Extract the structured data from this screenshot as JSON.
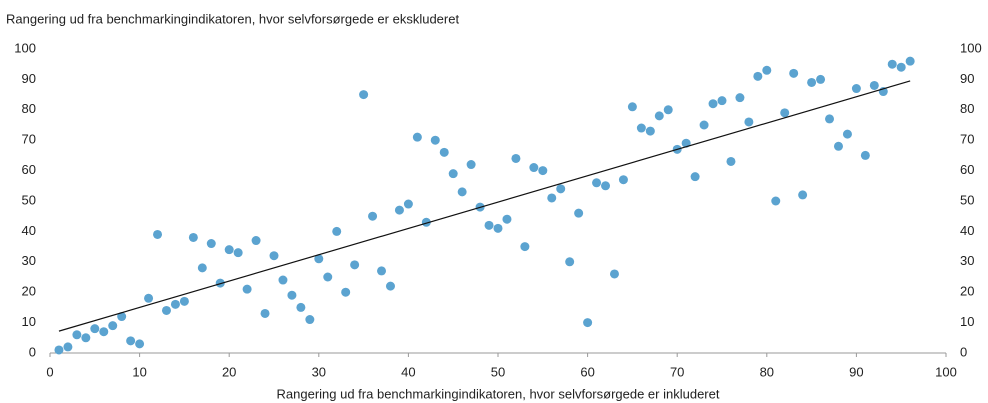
{
  "chart_data": {
    "type": "scatter",
    "title": "Rangering ud fra benchmarkingindikatoren, hvor selvforsørgede er ekskluderet",
    "x_label": "Rangering ud fra benchmarkingindikatoren, hvor selvforsørgede er inkluderet",
    "color": "#5ba3d0",
    "x": [
      1,
      2,
      3,
      4,
      5,
      6,
      7,
      8,
      9,
      10,
      11,
      12,
      13,
      14,
      15,
      16,
      17,
      18,
      19,
      20,
      21,
      22,
      23,
      24,
      25,
      26,
      27,
      28,
      29,
      30,
      31,
      32,
      33,
      34,
      35,
      36,
      37,
      38,
      39,
      40,
      41,
      42,
      43,
      44,
      45,
      46,
      47,
      48,
      49,
      50,
      51,
      52,
      53,
      54,
      55,
      56,
      57,
      58,
      59,
      60,
      61,
      62,
      63,
      64,
      65,
      66,
      67,
      68,
      69,
      70,
      71,
      72,
      73,
      74,
      75,
      76,
      77,
      78,
      79,
      80,
      81,
      82,
      83,
      84,
      85,
      86,
      87,
      88,
      89,
      90,
      91,
      92,
      93,
      94,
      95,
      96
    ],
    "y": [
      1,
      2,
      6,
      5,
      8,
      7,
      9,
      12,
      4,
      3,
      18,
      39,
      14,
      16,
      17,
      38,
      28,
      36,
      23,
      34,
      33,
      21,
      37,
      13,
      32,
      24,
      19,
      15,
      11,
      31,
      25,
      40,
      20,
      29,
      85,
      45,
      27,
      22,
      47,
      49,
      71,
      43,
      70,
      66,
      59,
      53,
      62,
      48,
      42,
      41,
      44,
      64,
      35,
      61,
      60,
      51,
      54,
      30,
      46,
      10,
      56,
      55,
      26,
      57,
      81,
      74,
      73,
      78,
      80,
      67,
      69,
      58,
      75,
      82,
      83,
      63,
      84,
      76,
      91,
      93,
      50,
      79,
      92,
      52,
      89,
      90,
      77,
      68,
      72,
      87,
      65,
      88,
      86,
      95,
      94,
      96
    ],
    "trendline": {
      "x": [
        1,
        96
      ],
      "y": [
        7.2,
        89.5
      ],
      "color": "#111111"
    },
    "xlim": [
      0,
      100
    ],
    "xticks": [
      0,
      10,
      20,
      30,
      40,
      50,
      60,
      70,
      80,
      90,
      100
    ],
    "ylim": [
      0,
      100
    ],
    "yticks": [
      0,
      10,
      20,
      30,
      40,
      50,
      60,
      70,
      80,
      90,
      100
    ],
    "y2lim": [
      0,
      100
    ],
    "y2ticks": [
      0,
      10,
      20,
      30,
      40,
      50,
      60,
      70,
      80,
      90,
      100
    ],
    "grid": false
  }
}
